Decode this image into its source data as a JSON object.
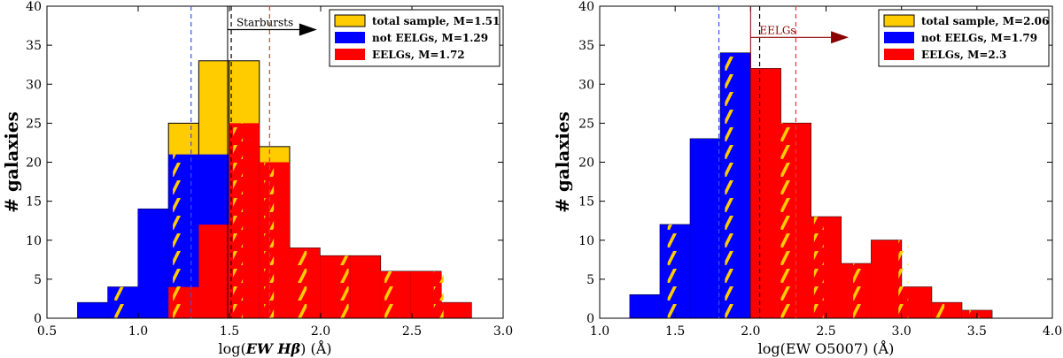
{
  "chart_data": [
    {
      "type": "bar",
      "id": "left",
      "ylabel": "# galaxies",
      "xlabel_parts": [
        "log(",
        "EW Hβ",
        ") (Å)"
      ],
      "xlim": [
        0.5,
        3.0
      ],
      "ylim": [
        0,
        40
      ],
      "xticks": [
        "0.5",
        "1.0",
        "1.5",
        "2.0",
        "2.5",
        "3.0"
      ],
      "yticks": [
        "0",
        "5",
        "10",
        "15",
        "20",
        "25",
        "30",
        "35",
        "40"
      ],
      "bin_width": 0.166,
      "series": [
        {
          "name": "total sample",
          "legend": "total sample, M=1.51",
          "color": "#ffcc00",
          "median": 1.51,
          "bins": [
            [
              0.668,
              2
            ],
            [
              0.834,
              4
            ],
            [
              1.0,
              14
            ],
            [
              1.166,
              25
            ],
            [
              1.332,
              33
            ],
            [
              1.498,
              33
            ],
            [
              1.664,
              22
            ],
            [
              1.83,
              9
            ],
            [
              1.996,
              8
            ],
            [
              2.162,
              8
            ],
            [
              2.328,
              6
            ],
            [
              2.494,
              6
            ],
            [
              2.66,
              2
            ]
          ]
        },
        {
          "name": "not EELGs",
          "legend": "not EELGs, M=1.29",
          "color": "#0000ff",
          "median": 1.29,
          "bins": [
            [
              0.668,
              2
            ],
            [
              0.834,
              4
            ],
            [
              1.0,
              14
            ],
            [
              1.166,
              21
            ],
            [
              1.332,
              21
            ],
            [
              1.498,
              8
            ]
          ]
        },
        {
          "name": "EELGs",
          "legend": "EELGs, M=1.72",
          "color": "#ff0000",
          "median": 1.72,
          "bins": [
            [
              1.166,
              4
            ],
            [
              1.332,
              12
            ],
            [
              1.498,
              25
            ],
            [
              1.664,
              20
            ],
            [
              1.83,
              9
            ],
            [
              1.996,
              8
            ],
            [
              2.162,
              8
            ],
            [
              2.328,
              6
            ],
            [
              2.494,
              6
            ],
            [
              2.66,
              2
            ]
          ]
        }
      ],
      "total_median_line": 1.51,
      "threshold": 1.49,
      "arrow_label": "Starbursts",
      "arrow_color": "#000000",
      "arrow_y": 37
    },
    {
      "type": "bar",
      "id": "right",
      "ylabel": "# galaxies",
      "xlabel_parts": [
        "log(",
        "EW O5007",
        ") (Å)"
      ],
      "xlim": [
        1.0,
        4.0
      ],
      "ylim": [
        0,
        40
      ],
      "xticks": [
        "1.0",
        "1.5",
        "2.0",
        "2.5",
        "3.0",
        "3.5",
        "4.0"
      ],
      "yticks": [
        "0",
        "5",
        "10",
        "15",
        "20",
        "25",
        "30",
        "35",
        "40"
      ],
      "bin_width": 0.2,
      "series": [
        {
          "name": "total sample",
          "legend": "total sample, M=2.06",
          "color": "#ffcc00",
          "median": 2.06,
          "bins": [
            [
              1.2,
              3
            ],
            [
              1.4,
              12
            ],
            [
              1.6,
              23
            ],
            [
              1.8,
              34
            ],
            [
              2.0,
              32
            ],
            [
              2.2,
              25
            ],
            [
              2.4,
              13
            ],
            [
              2.6,
              7
            ],
            [
              2.8,
              10
            ],
            [
              3.0,
              4
            ],
            [
              3.2,
              2
            ],
            [
              3.4,
              1
            ]
          ]
        },
        {
          "name": "not EELGs",
          "legend": "not EELGs, M=1.79",
          "color": "#0000ff",
          "median": 1.79,
          "bins": [
            [
              1.2,
              3
            ],
            [
              1.4,
              12
            ],
            [
              1.6,
              23
            ],
            [
              1.8,
              34
            ]
          ]
        },
        {
          "name": "EELGs",
          "legend": "EELGs, M=2.3",
          "color": "#ff0000",
          "median": 2.3,
          "bins": [
            [
              2.0,
              32
            ],
            [
              2.2,
              25
            ],
            [
              2.4,
              13
            ],
            [
              2.6,
              7
            ],
            [
              2.8,
              10
            ],
            [
              3.0,
              4
            ],
            [
              3.2,
              2
            ],
            [
              3.4,
              1
            ]
          ]
        }
      ],
      "total_median_line": 2.06,
      "threshold": 2.0,
      "arrow_label": "EELGs",
      "arrow_color": "#8b0000",
      "arrow_y": 36
    }
  ]
}
